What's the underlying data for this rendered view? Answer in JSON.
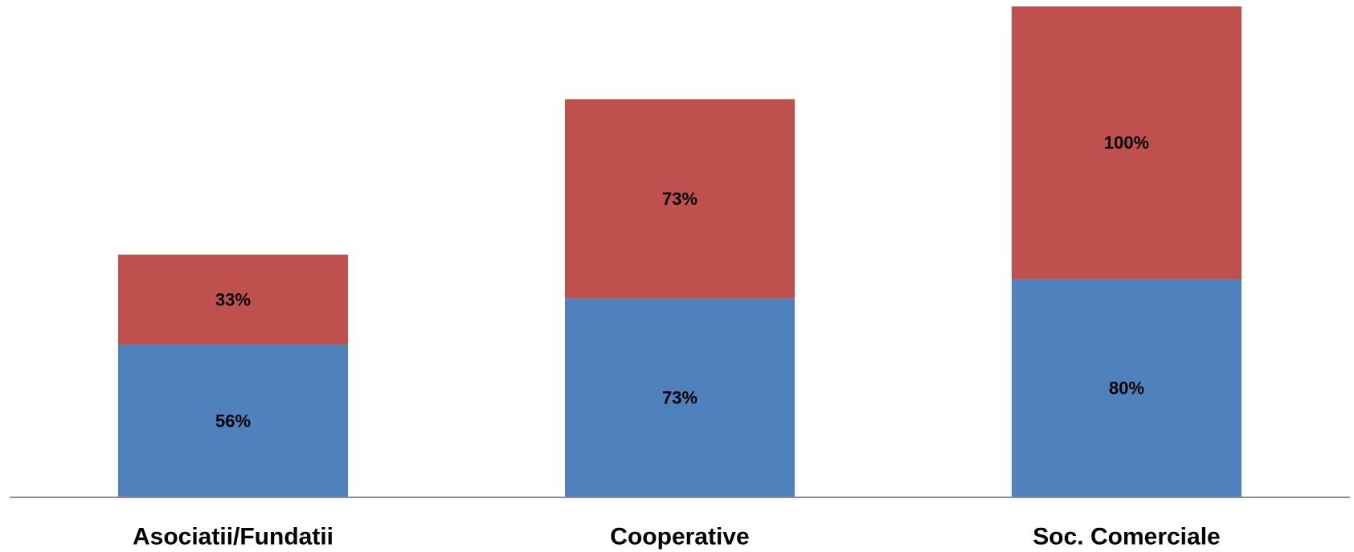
{
  "chart_data": {
    "type": "bar",
    "stacked": true,
    "categories": [
      "Asociatii/Fundatii",
      "Cooperative",
      "Soc. Comerciale"
    ],
    "series": [
      {
        "values": [
          56,
          73,
          80
        ],
        "labels": [
          "56%",
          "73%",
          "80%"
        ],
        "color": "#4F81BD"
      },
      {
        "values": [
          33,
          73,
          100
        ],
        "labels": [
          "33%",
          "73%",
          "100%"
        ],
        "color": "#C0504D"
      }
    ],
    "ylim": [
      0,
      180
    ],
    "grid": false,
    "legend": "none",
    "axis_color": "#8C8C8C"
  }
}
